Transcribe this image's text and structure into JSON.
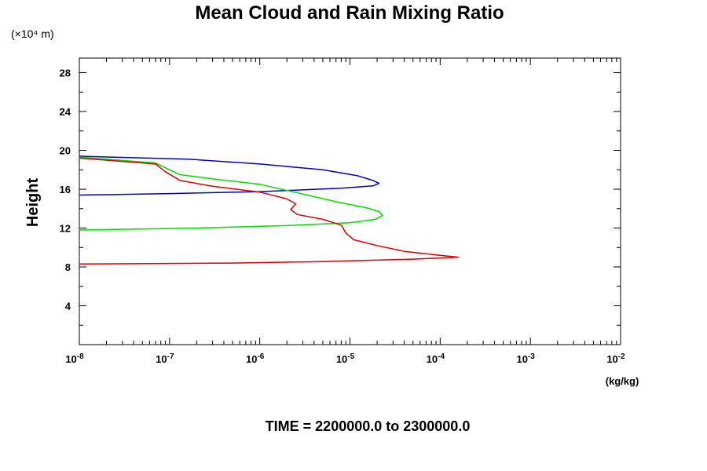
{
  "chart_data": {
    "type": "line",
    "title": "Mean Cloud and Rain Mixing Ratio",
    "ylabel": "Height",
    "y_unit": "(×10⁴ m)",
    "xlabel": "(kg/kg)",
    "footer": "TIME = 2200000.0 to 2300000.0",
    "x_scale": "log",
    "xlim": [
      1e-08,
      0.01
    ],
    "ylim": [
      0,
      29.5
    ],
    "x_ticks": [
      {
        "base": "10",
        "exp": "-8"
      },
      {
        "base": "10",
        "exp": "-7"
      },
      {
        "base": "10",
        "exp": "-6"
      },
      {
        "base": "10",
        "exp": "-5"
      },
      {
        "base": "10",
        "exp": "-4"
      },
      {
        "base": "10",
        "exp": "-3"
      },
      {
        "base": "10",
        "exp": "-2"
      }
    ],
    "y_ticks": [
      "4",
      "8",
      "12",
      "16",
      "20",
      "24",
      "28"
    ],
    "grid": false,
    "series": [
      {
        "color": "#0000cc",
        "points": [
          [
            1e-08,
            19.4
          ],
          [
            1.6e-07,
            19.1
          ],
          [
            1e-06,
            18.6
          ],
          [
            5e-06,
            18.0
          ],
          [
            1.2e-05,
            17.4
          ],
          [
            1.8e-05,
            16.9
          ],
          [
            2.1e-05,
            16.6
          ],
          [
            1.8e-05,
            16.35
          ],
          [
            8e-06,
            16.1
          ],
          [
            1e-06,
            15.75
          ],
          [
            1e-07,
            15.55
          ],
          [
            1e-08,
            15.4
          ]
        ]
      },
      {
        "color": "#00dd00",
        "points": [
          [
            1e-08,
            19.3
          ],
          [
            7e-08,
            18.7
          ],
          [
            1e-07,
            18.0
          ],
          [
            1.3e-07,
            17.5
          ],
          [
            3.5e-07,
            17.0
          ],
          [
            1e-06,
            16.5
          ],
          [
            3e-06,
            15.5
          ],
          [
            8e-06,
            14.6
          ],
          [
            1.5e-05,
            14.1
          ],
          [
            2.1e-05,
            13.7
          ],
          [
            2.3e-05,
            13.3
          ],
          [
            1.9e-05,
            12.9
          ],
          [
            1e-05,
            12.55
          ],
          [
            2e-06,
            12.25
          ],
          [
            2e-07,
            12.0
          ],
          [
            1e-08,
            11.8
          ]
        ]
      },
      {
        "color": "#dd0000",
        "points": [
          [
            1e-08,
            19.2
          ],
          [
            7e-08,
            18.6
          ],
          [
            9e-08,
            17.8
          ],
          [
            1.3e-07,
            16.9
          ],
          [
            3e-07,
            16.3
          ],
          [
            1e-06,
            15.7
          ],
          [
            2e-06,
            15.0
          ],
          [
            2.5e-06,
            14.5
          ],
          [
            2.2e-06,
            13.9
          ],
          [
            2.6e-06,
            13.4
          ],
          [
            5e-06,
            12.9
          ],
          [
            8e-06,
            12.3
          ],
          [
            9e-06,
            11.5
          ],
          [
            1.1e-05,
            10.8
          ],
          [
            2e-05,
            10.2
          ],
          [
            4e-05,
            9.6
          ],
          [
            0.0001,
            9.2
          ],
          [
            0.00016,
            9.0
          ],
          [
            5e-05,
            8.8
          ],
          [
            5e-06,
            8.55
          ],
          [
            5e-07,
            8.4
          ],
          [
            1e-08,
            8.3
          ]
        ]
      }
    ]
  }
}
